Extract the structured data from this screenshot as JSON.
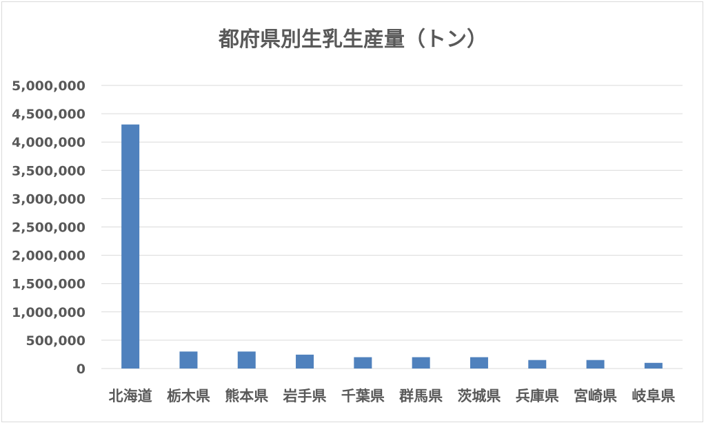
{
  "chart_data": {
    "type": "bar",
    "title": "都府県別生乳生産量（トン）",
    "xlabel": "",
    "ylabel": "",
    "categories": [
      "北海道",
      "栃木県",
      "熊本県",
      "岩手県",
      "千葉県",
      "群馬県",
      "茨城県",
      "兵庫県",
      "宮崎県",
      "岐阜県"
    ],
    "values": [
      4310000,
      300000,
      300000,
      245000,
      200000,
      200000,
      200000,
      150000,
      150000,
      100000
    ],
    "ylim": [
      0,
      5000000
    ],
    "yticks": [
      "0",
      "500,000",
      "1,000,000",
      "1,500,000",
      "2,000,000",
      "2,500,000",
      "3,000,000",
      "3,500,000",
      "4,000,000",
      "4,500,000",
      "5,000,000"
    ],
    "bar_color": "#4f81bd",
    "grid": true,
    "legend": "none"
  }
}
